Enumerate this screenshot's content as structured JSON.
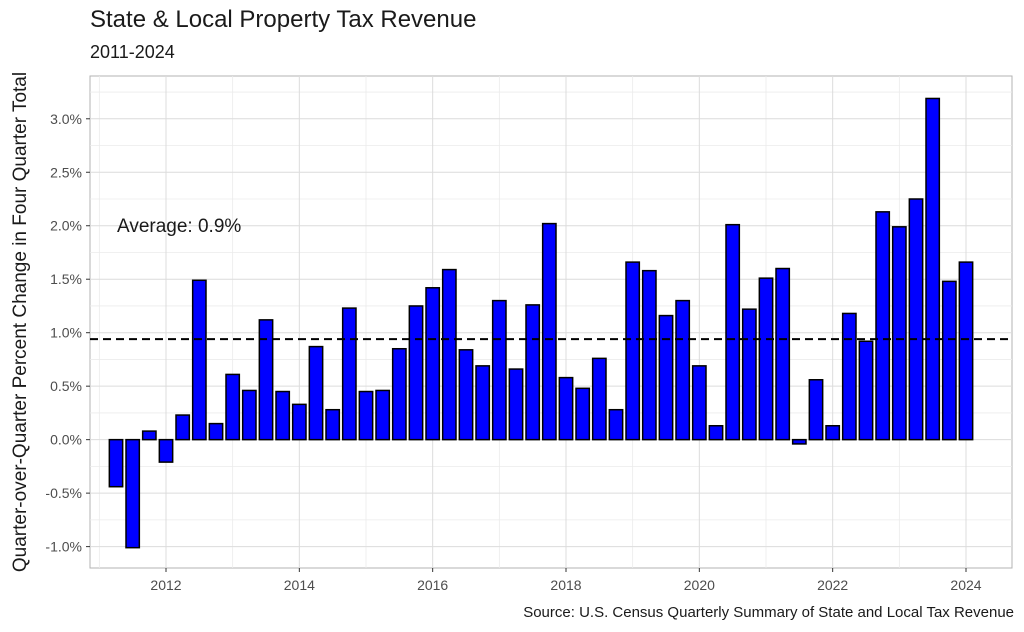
{
  "header": {
    "title": "State & Local Property Tax Revenue",
    "subtitle": "2011-2024"
  },
  "footer": {
    "caption": "Source: U.S. Census Quarterly Summary of State and Local Tax Revenue"
  },
  "chart_data": {
    "type": "bar",
    "title": "State & Local Property Tax Revenue",
    "subtitle": "2011-2024",
    "xlabel": "",
    "ylabel": "Quarter-over-Quarter Percent Change in Four Quarter Total",
    "xlim": [
      2010.86,
      2024.69
    ],
    "ylim": [
      -1.2,
      3.4
    ],
    "x_ticks": [
      2012,
      2014,
      2016,
      2018,
      2020,
      2022,
      2024
    ],
    "y_ticks": [
      -1.0,
      -0.5,
      0.0,
      0.5,
      1.0,
      1.5,
      2.0,
      2.5,
      3.0
    ],
    "y_tick_labels": [
      "-1.0%",
      "-0.5%",
      "0.0%",
      "0.5%",
      "1.0%",
      "1.5%",
      "2.0%",
      "2.5%",
      "3.0%"
    ],
    "bar_color": "#0000ff",
    "bar_outline": "#000000",
    "bar_width_years": 0.2,
    "grid": true,
    "average": {
      "value": 0.94,
      "label": "Average: 0.9%",
      "line_style": "dashed"
    },
    "x": [
      2011.25,
      2011.5,
      2011.75,
      2012.0,
      2012.25,
      2012.5,
      2012.75,
      2013.0,
      2013.25,
      2013.5,
      2013.75,
      2014.0,
      2014.25,
      2014.5,
      2014.75,
      2015.0,
      2015.25,
      2015.5,
      2015.75,
      2016.0,
      2016.25,
      2016.5,
      2016.75,
      2017.0,
      2017.25,
      2017.5,
      2017.75,
      2018.0,
      2018.25,
      2018.5,
      2018.75,
      2019.0,
      2019.25,
      2019.5,
      2019.75,
      2020.0,
      2020.25,
      2020.5,
      2020.75,
      2021.0,
      2021.25,
      2021.5,
      2021.75,
      2022.0,
      2022.25,
      2022.5,
      2022.75,
      2023.0,
      2023.25,
      2023.5,
      2023.75,
      2024.0
    ],
    "values": [
      -0.44,
      -1.01,
      0.08,
      -0.21,
      0.23,
      1.49,
      0.15,
      0.61,
      0.46,
      1.12,
      0.45,
      0.33,
      0.87,
      0.28,
      1.23,
      0.45,
      0.46,
      0.85,
      1.25,
      1.42,
      1.59,
      0.84,
      0.69,
      1.3,
      0.66,
      1.26,
      2.02,
      0.58,
      0.48,
      0.76,
      0.28,
      1.66,
      1.58,
      1.16,
      1.3,
      0.69,
      0.13,
      2.01,
      1.22,
      1.51,
      1.6,
      -0.04,
      0.56,
      0.13,
      1.18,
      0.92,
      2.13,
      1.99,
      2.25,
      3.19,
      1.48,
      1.66
    ]
  }
}
